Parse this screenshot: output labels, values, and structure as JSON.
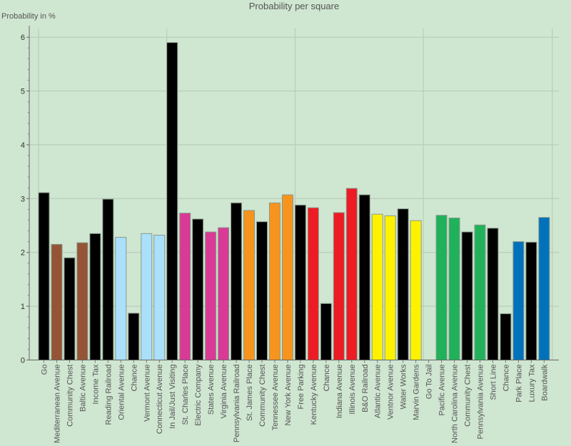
{
  "chart_data": {
    "type": "bar",
    "title": "Probability per square",
    "xlabel": "",
    "ylabel": "Probability in %",
    "ylim": [
      0,
      6.15
    ],
    "yticks": [
      "0",
      "1",
      "2",
      "3",
      "4",
      "5",
      "6"
    ],
    "grid": true,
    "legend": "none",
    "categories": [
      "Go",
      "Mediterranean Avenue",
      "Community Chest",
      "Baltic Avenue",
      "Income Tax",
      "Reading Railroad",
      "Oriental Avenue",
      "Chance",
      "Vermont Avenue",
      "Connecticut Avenue",
      "In Jail/Just Visiting",
      "St. Charles Place",
      "Electric Company",
      "States Avenue",
      "Virginia Avenue",
      "Pennsylvania Railroad",
      "St. James Place",
      "Community Chest",
      "Tennessee Avenue",
      "New York Avenue",
      "Free Parking",
      "Kentucky Avenue",
      "Chance",
      "Indiana Avenue",
      "Illinois Avenue",
      "B&O Railroad",
      "Atlantic Avenue",
      "Ventnor Avenue",
      "Water Works",
      "Marvin Gardens",
      "Go To Jail",
      "Pacific Avenue",
      "North Carolina Avenue",
      "Community Chest",
      "Pennsylvania Avenue",
      "Short Line",
      "Chance",
      "Park Place",
      "Luxury Tax",
      "Boardwalk"
    ],
    "values": [
      3.11,
      2.15,
      1.9,
      2.18,
      2.35,
      2.99,
      2.28,
      0.87,
      2.35,
      2.32,
      5.9,
      2.73,
      2.62,
      2.38,
      2.46,
      2.92,
      2.78,
      2.57,
      2.92,
      3.07,
      2.88,
      2.83,
      1.05,
      2.74,
      3.19,
      3.07,
      2.71,
      2.68,
      2.81,
      2.59,
      0,
      2.69,
      2.64,
      2.38,
      2.51,
      2.45,
      0.86,
      2.2,
      2.19,
      2.65
    ],
    "colors": [
      "#000000",
      "#955436",
      "#000000",
      "#955436",
      "#000000",
      "#000000",
      "#aae0fa",
      "#000000",
      "#aae0fa",
      "#aae0fa",
      "#000000",
      "#d93a96",
      "#000000",
      "#d93a96",
      "#d93a96",
      "#000000",
      "#f7941d",
      "#000000",
      "#f7941d",
      "#f7941d",
      "#000000",
      "#ed1b24",
      "#000000",
      "#ed1b24",
      "#ed1b24",
      "#000000",
      "#fef200",
      "#fef200",
      "#000000",
      "#fef200",
      "#000000",
      "#1fb25a",
      "#1fb25a",
      "#000000",
      "#1fb25a",
      "#000000",
      "#000000",
      "#0072bb",
      "#000000",
      "#0072bb"
    ]
  }
}
